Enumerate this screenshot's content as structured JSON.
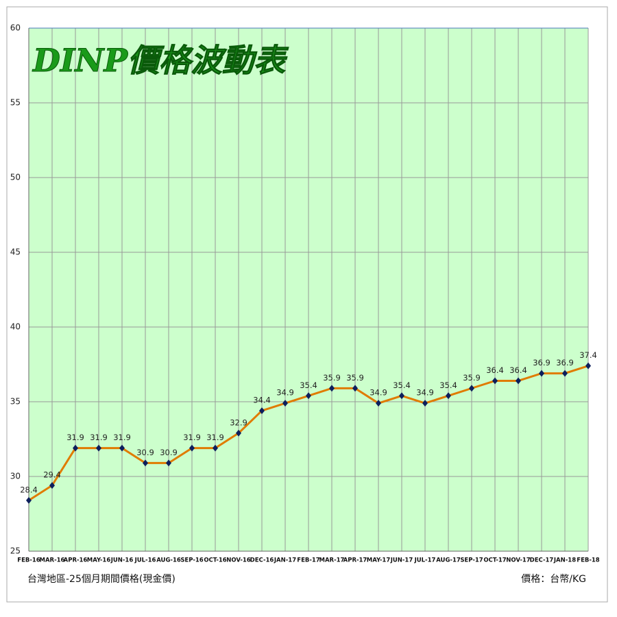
{
  "chart_data": {
    "type": "line",
    "title": "DINP價格波動表",
    "subtitle": "台灣地區-25個月期間價格(現金價)",
    "unit_note": "價格：台幣/KG",
    "categories": [
      "FEB-16",
      "MAR-16",
      "APR-16",
      "MAY-16",
      "JUN-16",
      "JUL-16",
      "AUG-16",
      "SEP-16",
      "OCT-16",
      "NOV-16",
      "DEC-16",
      "JAN-17",
      "FEB-17",
      "MAR-17",
      "APR-17",
      "MAY-17",
      "JUN-17",
      "JUL-17",
      "AUG-17",
      "SEP-17",
      "OCT-17",
      "NOV-17",
      "DEC-17",
      "JAN-18",
      "FEB-18"
    ],
    "series": [
      {
        "name": "DINP",
        "color": "#e07b00",
        "marker_color": "#0d1f5c",
        "values": [
          28.4,
          29.4,
          31.9,
          31.9,
          31.9,
          30.9,
          30.9,
          31.9,
          31.9,
          32.9,
          34.4,
          34.9,
          35.4,
          35.9,
          35.9,
          34.9,
          35.4,
          34.9,
          35.4,
          35.9,
          36.4,
          36.4,
          36.9,
          36.9,
          37.4
        ]
      }
    ],
    "ylim": [
      25,
      60
    ],
    "yticks": [
      25,
      30,
      35,
      40,
      45,
      50,
      55,
      60
    ],
    "grid": true,
    "background": "#ccffcc"
  }
}
